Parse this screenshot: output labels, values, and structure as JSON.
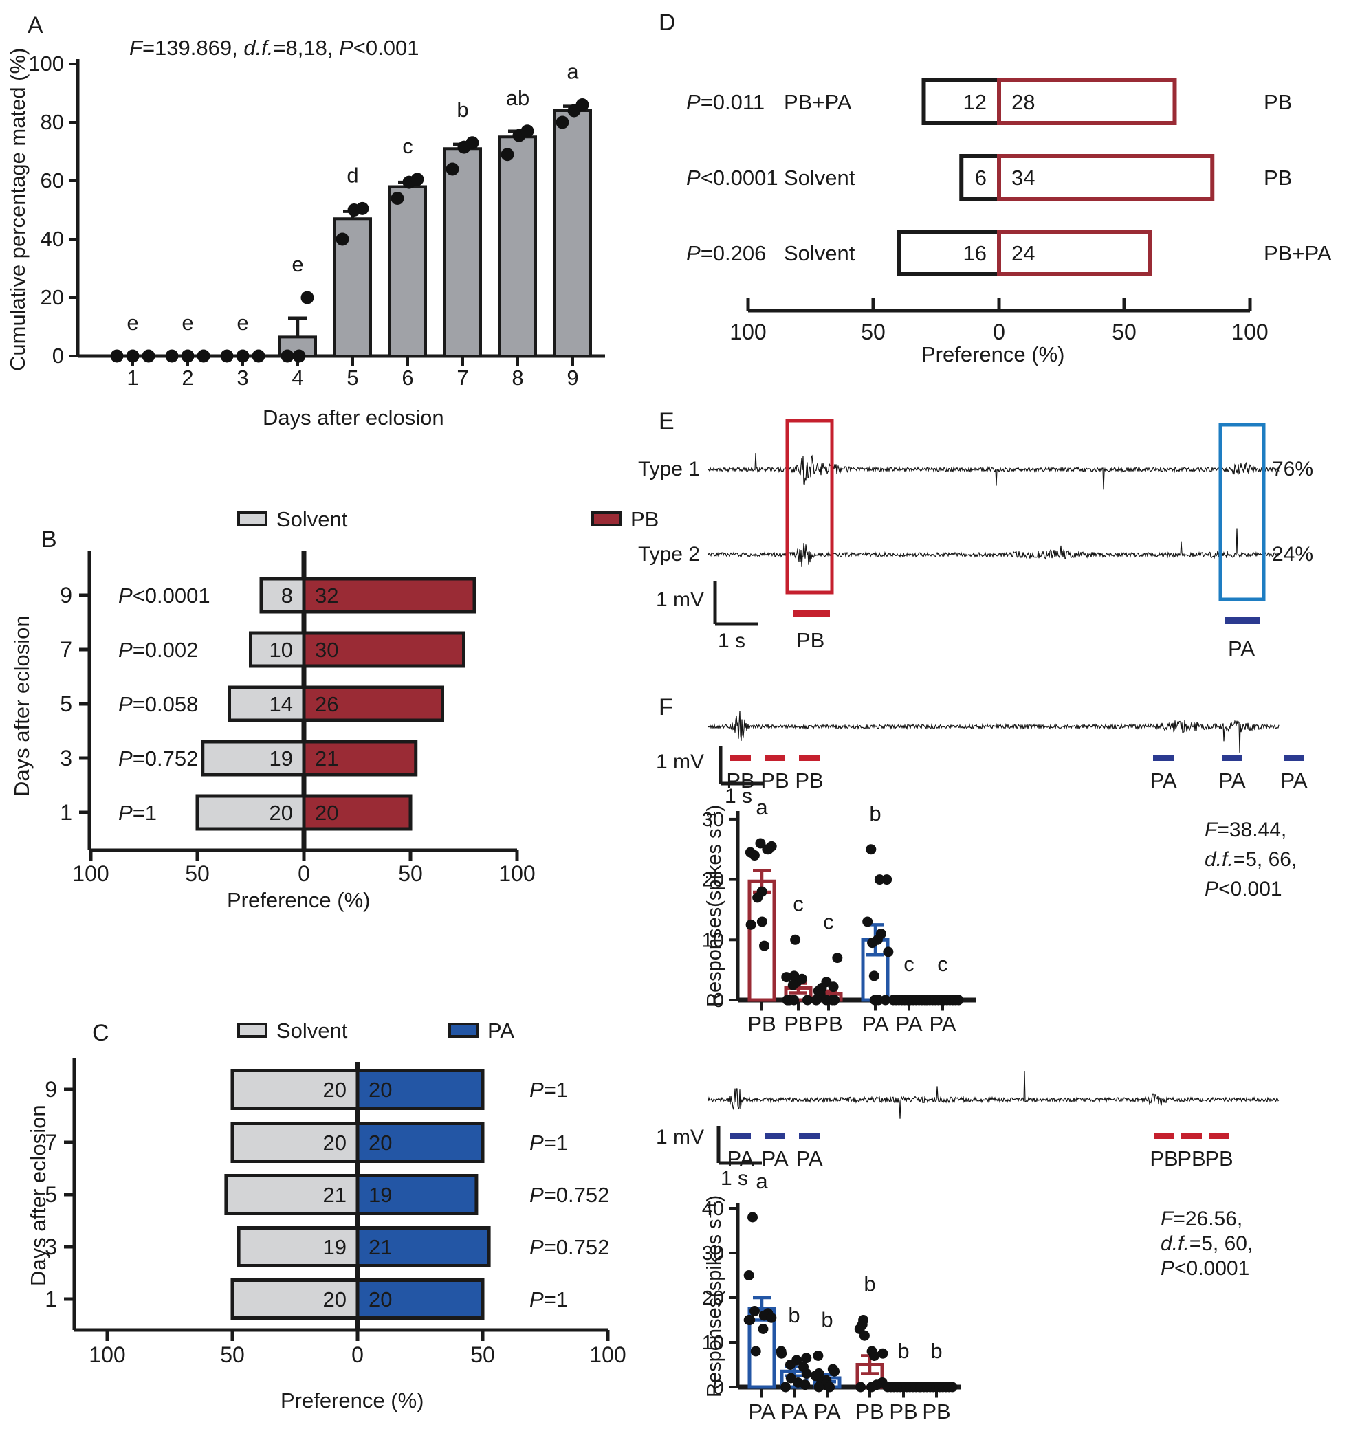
{
  "colors": {
    "dark_red": "#9a2b35",
    "blue": "#2356a5",
    "gray_bar": "#a0a2a7",
    "gray_light": "#d3d4d6",
    "crimson": "#c5202e",
    "navy": "#2b3a90",
    "light_blue": "#1e7dc2",
    "black": "#1a1a1a"
  },
  "panelA": {
    "label": "A",
    "stats": [
      {
        "t": "F",
        "i": 1
      },
      {
        "t": "=139.869, "
      },
      {
        "t": "d.f.",
        "i": 1
      },
      {
        "t": "=8,18, "
      },
      {
        "t": "P",
        "i": 1
      },
      {
        "t": "<0.001"
      }
    ],
    "ylabel": "Cumulative percentage mated (%)",
    "xlabel": "Days after eclosion",
    "chart_data": {
      "type": "bar",
      "categories": [
        "1",
        "2",
        "3",
        "4",
        "5",
        "6",
        "7",
        "8",
        "9"
      ],
      "values": [
        0,
        0,
        0,
        6.5,
        47,
        58,
        71,
        75,
        84
      ],
      "errors": [
        0,
        0,
        0,
        6.5,
        2.5,
        1.5,
        1.5,
        2,
        1.5
      ],
      "letters": [
        "e",
        "e",
        "e",
        "e",
        "d",
        "c",
        "b",
        "ab",
        "a"
      ],
      "points": [
        [
          0,
          0,
          0
        ],
        [
          0,
          0,
          0
        ],
        [
          0,
          0,
          0
        ],
        [
          0,
          0,
          20
        ],
        [
          40,
          50,
          50.5
        ],
        [
          54,
          59.5,
          60.5
        ],
        [
          64,
          71.5,
          73
        ],
        [
          69,
          75.5,
          77
        ],
        [
          80,
          84,
          86
        ]
      ],
      "ylim": [
        0,
        100
      ],
      "yticks": [
        0,
        20,
        40,
        60,
        80,
        100
      ],
      "bar_color": "#a0a2a7"
    }
  },
  "panelB": {
    "label": "B",
    "legend": [
      {
        "label": "Solvent",
        "color": "#d3d4d6"
      },
      {
        "label": "PB",
        "color": "#9a2b35"
      }
    ],
    "ylabel": "Days after eclosion",
    "xlabel": "Preference (%)",
    "chart_data": {
      "type": "diverging-bar",
      "total": 40,
      "xticks": [
        "100",
        "50",
        "0",
        "50",
        "100"
      ],
      "left_color": "#d3d4d6",
      "right_color": "#9a2b35",
      "rows": [
        {
          "day": "9",
          "p": [
            {
              "t": "P",
              "i": 1
            },
            {
              "t": "<0.0001"
            }
          ],
          "left": 8,
          "right": 32
        },
        {
          "day": "7",
          "p": [
            {
              "t": "P",
              "i": 1
            },
            {
              "t": "=0.002"
            }
          ],
          "left": 10,
          "right": 30
        },
        {
          "day": "5",
          "p": [
            {
              "t": "P",
              "i": 1
            },
            {
              "t": "=0.058"
            }
          ],
          "left": 14,
          "right": 26
        },
        {
          "day": "3",
          "p": [
            {
              "t": "P",
              "i": 1
            },
            {
              "t": "=0.752"
            }
          ],
          "left": 19,
          "right": 21
        },
        {
          "day": "1",
          "p": [
            {
              "t": "P",
              "i": 1
            },
            {
              "t": "=1"
            }
          ],
          "left": 20,
          "right": 20
        }
      ]
    }
  },
  "panelC": {
    "label": "C",
    "legend": [
      {
        "label": "Solvent",
        "color": "#d3d4d6"
      },
      {
        "label": "PA",
        "color": "#2356a5"
      }
    ],
    "ylabel": "Days after eclosion",
    "xlabel": "Preference (%)",
    "chart_data": {
      "type": "diverging-bar",
      "total": 40,
      "xticks": [
        "100",
        "50",
        "0",
        "50",
        "100"
      ],
      "left_color": "#d3d4d6",
      "right_color": "#2356a5",
      "rows": [
        {
          "day": "9",
          "p": [
            {
              "t": "P",
              "i": 1
            },
            {
              "t": "=1"
            }
          ],
          "left": 20,
          "right": 20
        },
        {
          "day": "7",
          "p": [
            {
              "t": "P",
              "i": 1
            },
            {
              "t": "=1"
            }
          ],
          "left": 20,
          "right": 20
        },
        {
          "day": "5",
          "p": [
            {
              "t": "P",
              "i": 1
            },
            {
              "t": "=0.752"
            }
          ],
          "left": 21,
          "right": 19
        },
        {
          "day": "3",
          "p": [
            {
              "t": "P",
              "i": 1
            },
            {
              "t": "=0.752"
            }
          ],
          "left": 19,
          "right": 21
        },
        {
          "day": "1",
          "p": [
            {
              "t": "P",
              "i": 1
            },
            {
              "t": "=1"
            }
          ],
          "left": 20,
          "right": 20
        }
      ]
    }
  },
  "panelD": {
    "label": "D",
    "xlabel": "Preference (%)",
    "chart_data": {
      "type": "diverging-bar-outline",
      "total": 40,
      "xticks": [
        "100",
        "50",
        "0",
        "50",
        "100"
      ],
      "left_stroke": "#1a1a1a",
      "right_stroke": "#9a2b35",
      "rows": [
        {
          "p": [
            {
              "t": "P",
              "i": 1
            },
            {
              "t": "=0.011"
            }
          ],
          "left_label": "PB+PA",
          "left": 12,
          "right": 28,
          "right_label": "PB"
        },
        {
          "p": [
            {
              "t": "P",
              "i": 1
            },
            {
              "t": "<0.0001"
            }
          ],
          "left_label": "Solvent",
          "left": 6,
          "right": 34,
          "right_label": "PB"
        },
        {
          "p": [
            {
              "t": "P",
              "i": 1
            },
            {
              "t": "=0.206"
            }
          ],
          "left_label": "Solvent",
          "left": 16,
          "right": 24,
          "right_label": "PB+PA"
        }
      ]
    }
  },
  "panelE": {
    "label": "E",
    "traces": [
      {
        "label": "Type 1",
        "pct": "76%"
      },
      {
        "label": "Type 2",
        "pct": "24%"
      }
    ],
    "scale": {
      "v": "1 mV",
      "t": "1 s"
    },
    "stim": [
      {
        "label": "PB",
        "color": "#c5202e"
      },
      {
        "label": "PA",
        "color": "#2b3a90"
      }
    ],
    "boxes": [
      {
        "color": "#c5202e"
      },
      {
        "color": "#1e7dc2"
      }
    ]
  },
  "panelF": {
    "label": "F",
    "scale": {
      "v": "1 mV",
      "t": "1 s"
    },
    "trace1_stim": {
      "left": [
        "PB",
        "PB",
        "PB"
      ],
      "left_color": "#c5202e",
      "right": [
        "PA",
        "PA",
        "PA"
      ],
      "right_color": "#2b3a90"
    },
    "trace2_stim": {
      "left": [
        "PA",
        "PA",
        "PA"
      ],
      "left_color": "#2b3a90",
      "right": [
        "PB",
        "PB",
        "PB"
      ],
      "right_color": "#c5202e"
    },
    "chart1": {
      "type": "bar",
      "ylabel": "Responses(spikes s⁻¹)",
      "categories": [
        "PB",
        "PB",
        "PB",
        "PA",
        "PA",
        "PA"
      ],
      "values": [
        19.7,
        2,
        1,
        10,
        0,
        0
      ],
      "errors": [
        1.8,
        0.8,
        0.5,
        2.5,
        0,
        0
      ],
      "letters": [
        "a",
        "c",
        "c",
        "b",
        "c",
        "c"
      ],
      "bar_colors": [
        "#9a2b35",
        "#9a2b35",
        "#9a2b35",
        "#2356a5",
        "#1a1a1a",
        "#1a1a1a"
      ],
      "points": [
        [
          26,
          25.5,
          25,
          25,
          24.5,
          24,
          18,
          17,
          13,
          12.5,
          9
        ],
        [
          10,
          4,
          3.8,
          3.5,
          3,
          2.5,
          0,
          0,
          0,
          0,
          0,
          0
        ],
        [
          7,
          3,
          2.2,
          2,
          1.5,
          1,
          0,
          0,
          0,
          0,
          0
        ],
        [
          25,
          20,
          20,
          13,
          11,
          10,
          9.5,
          8,
          4,
          0,
          0,
          0
        ],
        [
          0,
          0,
          0,
          0,
          0,
          0,
          0,
          0,
          0,
          0,
          0,
          0
        ],
        [
          0,
          0,
          0,
          0,
          0,
          0,
          0,
          0,
          0,
          0,
          0,
          0
        ]
      ],
      "ylim": [
        0,
        30
      ],
      "yticks": [
        0,
        10,
        20,
        30
      ],
      "stats": [
        [
          {
            "t": "F",
            "i": 1
          },
          {
            "t": "=38.44,"
          }
        ],
        [
          {
            "t": "d.f.",
            "i": 1
          },
          {
            "t": "=5, 66,"
          }
        ],
        [
          {
            "t": "P",
            "i": 1
          },
          {
            "t": "<0.001"
          }
        ]
      ]
    },
    "chart2": {
      "type": "bar",
      "ylabel": "Responses(spikes s⁻¹)",
      "categories": [
        "PA",
        "PA",
        "PA",
        "PB",
        "PB",
        "PB"
      ],
      "values": [
        17.5,
        3.5,
        2,
        5,
        0,
        0
      ],
      "errors": [
        2.5,
        1,
        0.8,
        2,
        0,
        0
      ],
      "letters": [
        "a",
        "b",
        "b",
        "b",
        "b",
        "b"
      ],
      "bar_colors": [
        "#2356a5",
        "#2356a5",
        "#2356a5",
        "#9a2b35",
        "#1a1a1a",
        "#1a1a1a"
      ],
      "points": [
        [
          38,
          25,
          17,
          16.5,
          16,
          15.5,
          15,
          15,
          13,
          8
        ],
        [
          8,
          7.5,
          6.5,
          6,
          5,
          4.5,
          3,
          2,
          1,
          0.5,
          0
        ],
        [
          7,
          4,
          3.5,
          3,
          3,
          2.5,
          1.5,
          1,
          0.5,
          0,
          0
        ],
        [
          15,
          14,
          13,
          11.5,
          8,
          7.5,
          7,
          1,
          0.5,
          0,
          0
        ],
        [
          0,
          0,
          0,
          0,
          0,
          0,
          0,
          0,
          0,
          0,
          0
        ],
        [
          0,
          0,
          0,
          0,
          0,
          0,
          0,
          0,
          0,
          0,
          0
        ]
      ],
      "ylim": [
        0,
        40
      ],
      "yticks": [
        0,
        10,
        20,
        30,
        40
      ],
      "stats": [
        [
          {
            "t": "F",
            "i": 1
          },
          {
            "t": "=26.56,"
          }
        ],
        [
          {
            "t": "d.f.",
            "i": 1
          },
          {
            "t": "=5, 60,"
          }
        ],
        [
          {
            "t": "P",
            "i": 1
          },
          {
            "t": "<0.0001"
          }
        ]
      ]
    }
  }
}
